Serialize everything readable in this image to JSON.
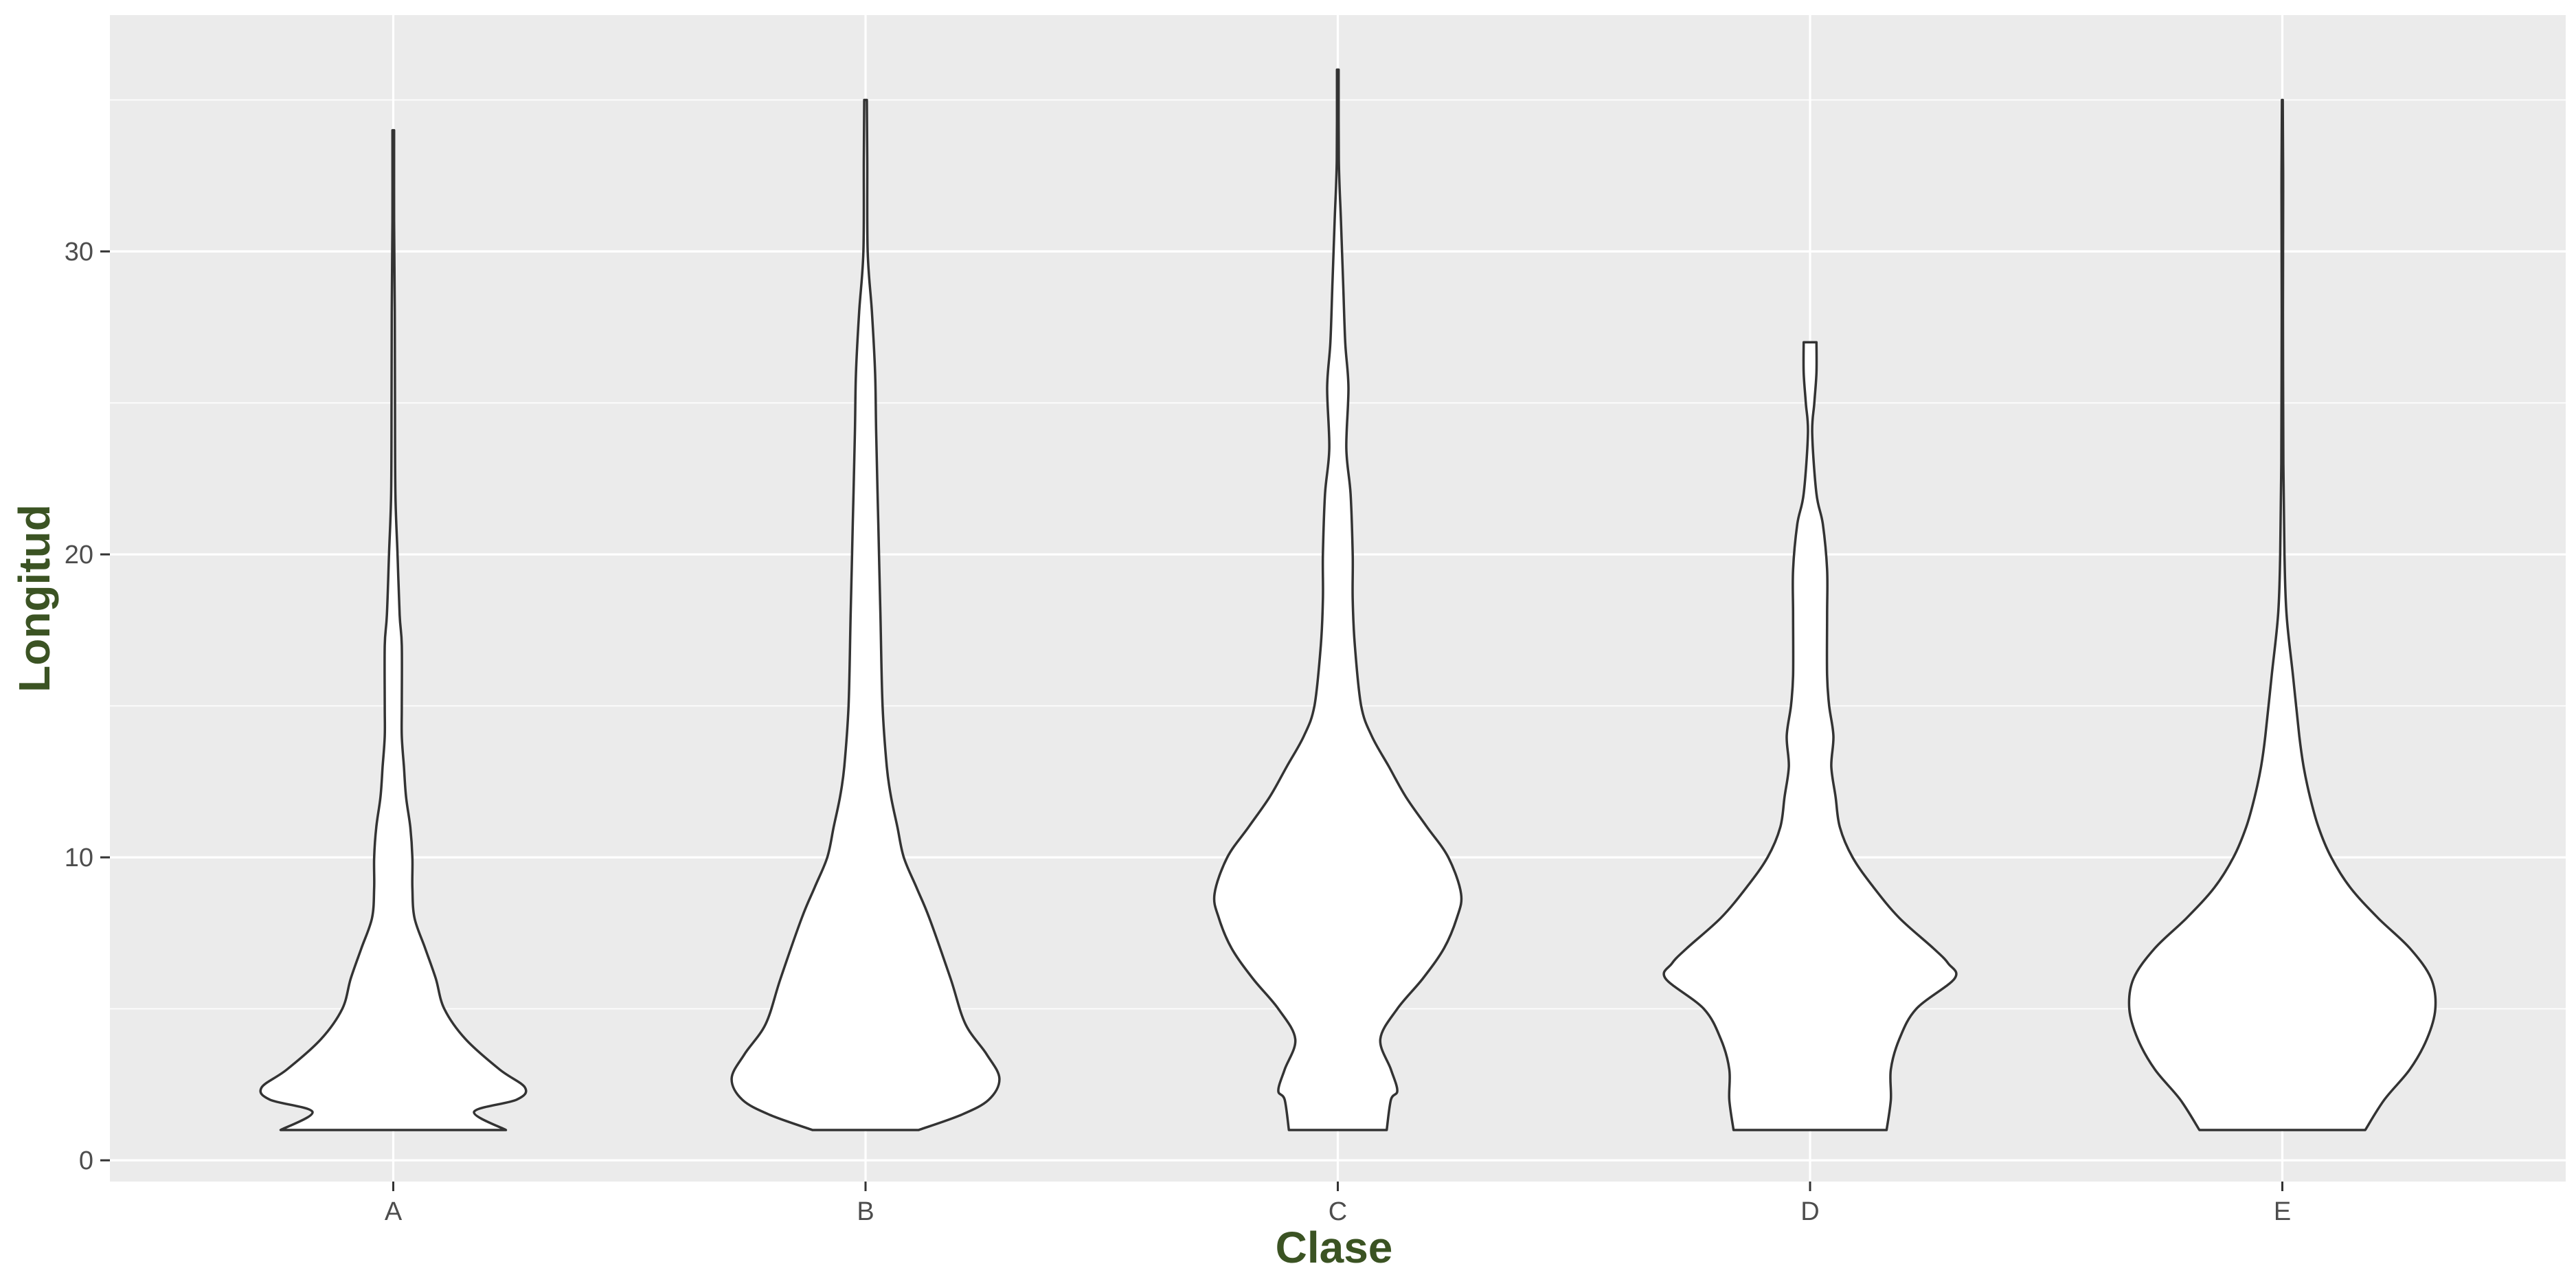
{
  "chart_data": {
    "type": "violin",
    "title": "",
    "xlabel": "Clase",
    "ylabel": "Longitud",
    "categories": [
      "A",
      "B",
      "C",
      "D",
      "E"
    ],
    "y_ticks": [
      0,
      10,
      20,
      30
    ],
    "ylim": [
      -0.7,
      37.8
    ],
    "grid": true,
    "legend": "none",
    "colors": {
      "panel_background": "#ebebeb",
      "grid": "#ffffff",
      "violin_fill": "#ffffff",
      "violin_outline": "#333333",
      "axis_title": "#3b5323",
      "tick_label": "#4d4d4d"
    },
    "series": [
      {
        "category": "A",
        "min": 1,
        "max": 34,
        "profile": [
          [
            1,
            0.53
          ],
          [
            1.6,
            0.38
          ],
          [
            2,
            0.58
          ],
          [
            2.4,
            0.62
          ],
          [
            3,
            0.5
          ],
          [
            4,
            0.34
          ],
          [
            5,
            0.24
          ],
          [
            6,
            0.2
          ],
          [
            7,
            0.15
          ],
          [
            8,
            0.1
          ],
          [
            9,
            0.09
          ],
          [
            10,
            0.09
          ],
          [
            11,
            0.08
          ],
          [
            12,
            0.06
          ],
          [
            13,
            0.05
          ],
          [
            14,
            0.04
          ],
          [
            15,
            0.04
          ],
          [
            17,
            0.04
          ],
          [
            18,
            0.03
          ],
          [
            20,
            0.02
          ],
          [
            22,
            0.01
          ],
          [
            25,
            0.008
          ],
          [
            28,
            0.007
          ],
          [
            31,
            0.004
          ],
          [
            34,
            0.004
          ]
        ]
      },
      {
        "category": "B",
        "min": 1,
        "max": 35,
        "profile": [
          [
            1,
            0.25
          ],
          [
            1.5,
            0.45
          ],
          [
            2,
            0.58
          ],
          [
            2.7,
            0.63
          ],
          [
            3.5,
            0.57
          ],
          [
            4.5,
            0.47
          ],
          [
            6,
            0.4
          ],
          [
            8,
            0.3
          ],
          [
            9,
            0.24
          ],
          [
            10,
            0.18
          ],
          [
            11,
            0.15
          ],
          [
            12,
            0.12
          ],
          [
            13,
            0.1
          ],
          [
            15,
            0.08
          ],
          [
            18,
            0.07
          ],
          [
            21,
            0.06
          ],
          [
            24,
            0.05
          ],
          [
            26,
            0.045
          ],
          [
            28,
            0.03
          ],
          [
            30,
            0.01
          ],
          [
            33,
            0.008
          ],
          [
            35,
            0.006
          ]
        ]
      },
      {
        "category": "C",
        "min": 1,
        "max": 36,
        "profile": [
          [
            1,
            0.23
          ],
          [
            2,
            0.25
          ],
          [
            2.3,
            0.28
          ],
          [
            3,
            0.25
          ],
          [
            4,
            0.2
          ],
          [
            5,
            0.28
          ],
          [
            6,
            0.4
          ],
          [
            7,
            0.5
          ],
          [
            8,
            0.56
          ],
          [
            8.8,
            0.58
          ],
          [
            10,
            0.52
          ],
          [
            11,
            0.42
          ],
          [
            12,
            0.32
          ],
          [
            13,
            0.24
          ],
          [
            14,
            0.16
          ],
          [
            15,
            0.11
          ],
          [
            17,
            0.08
          ],
          [
            18.5,
            0.07
          ],
          [
            20,
            0.07
          ],
          [
            22,
            0.06
          ],
          [
            23.5,
            0.04
          ],
          [
            25.5,
            0.05
          ],
          [
            27,
            0.035
          ],
          [
            29,
            0.025
          ],
          [
            31,
            0.015
          ],
          [
            33,
            0.005
          ],
          [
            36,
            0.004
          ]
        ]
      },
      {
        "category": "D",
        "min": 1,
        "max": 27,
        "profile": [
          [
            1,
            0.36
          ],
          [
            2,
            0.38
          ],
          [
            3,
            0.38
          ],
          [
            4,
            0.42
          ],
          [
            5,
            0.5
          ],
          [
            6,
            0.68
          ],
          [
            6.5,
            0.65
          ],
          [
            7,
            0.58
          ],
          [
            8,
            0.42
          ],
          [
            9,
            0.3
          ],
          [
            10,
            0.2
          ],
          [
            11,
            0.14
          ],
          [
            12,
            0.12
          ],
          [
            13,
            0.1
          ],
          [
            14,
            0.11
          ],
          [
            15,
            0.09
          ],
          [
            16,
            0.08
          ],
          [
            18,
            0.08
          ],
          [
            19.5,
            0.08
          ],
          [
            21,
            0.06
          ],
          [
            22,
            0.03
          ],
          [
            24,
            0.01
          ],
          [
            25,
            0.02
          ],
          [
            26,
            0.03
          ],
          [
            27,
            0.03
          ]
        ]
      },
      {
        "category": "E",
        "min": 1,
        "max": 35,
        "profile": [
          [
            1,
            0.39
          ],
          [
            2,
            0.48
          ],
          [
            3,
            0.6
          ],
          [
            4,
            0.68
          ],
          [
            5,
            0.72
          ],
          [
            6,
            0.7
          ],
          [
            7,
            0.6
          ],
          [
            8,
            0.45
          ],
          [
            9,
            0.32
          ],
          [
            10,
            0.23
          ],
          [
            11,
            0.17
          ],
          [
            12,
            0.13
          ],
          [
            13,
            0.1
          ],
          [
            14,
            0.08
          ],
          [
            16,
            0.05
          ],
          [
            18,
            0.02
          ],
          [
            20,
            0.01
          ],
          [
            23,
            0.005
          ],
          [
            28,
            0.003
          ],
          [
            32,
            0.004
          ],
          [
            35,
            0.002
          ]
        ]
      }
    ]
  }
}
